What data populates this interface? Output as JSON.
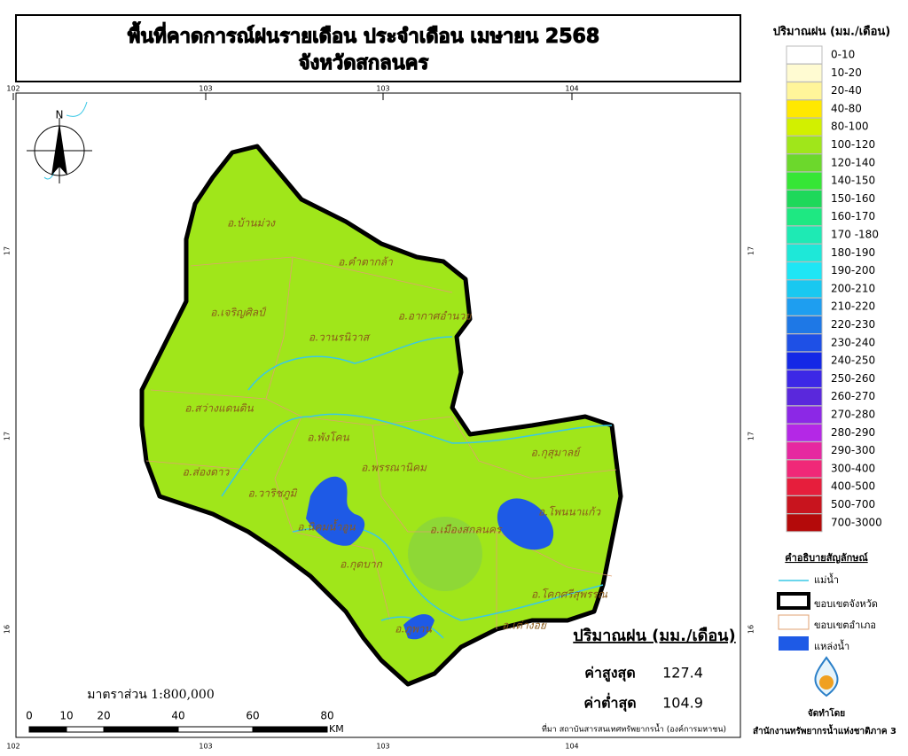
{
  "header": {
    "title": "พื้นที่คาดการณ์ฝนรายเดือน ประจำเดือน เมษายน 2568",
    "subtitle": "จังหวัดสกลนคร"
  },
  "grid_labels": {
    "top": [
      102,
      103,
      103,
      104
    ],
    "bottom": [
      102,
      103,
      103,
      104
    ],
    "left": [
      17,
      17,
      16
    ],
    "right": [
      17,
      17,
      16
    ]
  },
  "north": "N",
  "districts": [
    "อ.บ้านม่วง",
    "อ.คำตากล้า",
    "อ.เจริญศิลป์",
    "อ.อากาศอำนวย",
    "อ.วานรนิวาส",
    "อ.สว่างแดนดิน",
    "อ.พังโคน",
    "อ.ส่องดาว",
    "อ.พรรณานิคม",
    "อ.กุสุมาลย์",
    "อ.วาริชภูมิ",
    "อ.นิคมน้ำอูน",
    "อ.เมืองสกลนคร",
    "อ.โพนนาแก้ว",
    "อ.กุดบาก",
    "อ.โคกศรีสุพรรณ",
    "อ.ภูพาน",
    "อ.เต่างอย"
  ],
  "legend": {
    "title": "ปริมาณฝน (มม./เดือน)",
    "items": [
      {
        "label": "0-10",
        "color": "#ffffff"
      },
      {
        "label": "10-20",
        "color": "#fffbd2"
      },
      {
        "label": "20-40",
        "color": "#fff59a"
      },
      {
        "label": "40-80",
        "color": "#ffe800"
      },
      {
        "label": "80-100",
        "color": "#d2f000"
      },
      {
        "label": "100-120",
        "color": "#a0e61a"
      },
      {
        "label": "120-140",
        "color": "#6cd82c"
      },
      {
        "label": "140-150",
        "color": "#36e636"
      },
      {
        "label": "150-160",
        "color": "#1ed85a"
      },
      {
        "label": "160-170",
        "color": "#1ee882"
      },
      {
        "label": "170 -180",
        "color": "#1eeab4"
      },
      {
        "label": "180-190",
        "color": "#1ee8d8"
      },
      {
        "label": "190-200",
        "color": "#1ee6f5"
      },
      {
        "label": "200-210",
        "color": "#19c8f0"
      },
      {
        "label": "210-220",
        "color": "#1e9ef0"
      },
      {
        "label": "220-230",
        "color": "#1e78e6"
      },
      {
        "label": "230-240",
        "color": "#1e50e6"
      },
      {
        "label": "240-250",
        "color": "#1428e6"
      },
      {
        "label": "250-260",
        "color": "#3c28e6"
      },
      {
        "label": "260-270",
        "color": "#5a28dc"
      },
      {
        "label": "270-280",
        "color": "#8c28e6"
      },
      {
        "label": "280-290",
        "color": "#b428e6"
      },
      {
        "label": "290-300",
        "color": "#e628a0"
      },
      {
        "label": "300-400",
        "color": "#f02878"
      },
      {
        "label": "400-500",
        "color": "#e61e3c"
      },
      {
        "label": "500-700",
        "color": "#c8141e"
      },
      {
        "label": "700-3000",
        "color": "#b40a0a"
      }
    ]
  },
  "symbols": {
    "title": "คำอธิบายสัญลักษณ์",
    "items": [
      "แม่น้ำ",
      "ขอบเขตจังหวัด",
      "ขอบเขตอำเภอ",
      "แหล่งน้ำ"
    ]
  },
  "stats": {
    "title": "ปริมาณฝน (มม./เดือน)",
    "max_label": "ค่าสูงสุด",
    "max": 127.4,
    "min_label": "ค่าต่ำสุด",
    "min": 104.9
  },
  "scale": {
    "label": "มาตราส่วน 1:800,000",
    "ticks": [
      0,
      10,
      20,
      40,
      60,
      80
    ],
    "unit": "KM"
  },
  "source": "ที่มา  สถาบันสารสนเทศทรัพยากรน้ำ (องค์การมหาชน)",
  "credit": {
    "label": "จัดทำโดย",
    "org": "สำนักงานทรัพยากรน้ำแห่งชาติภาค 3"
  }
}
